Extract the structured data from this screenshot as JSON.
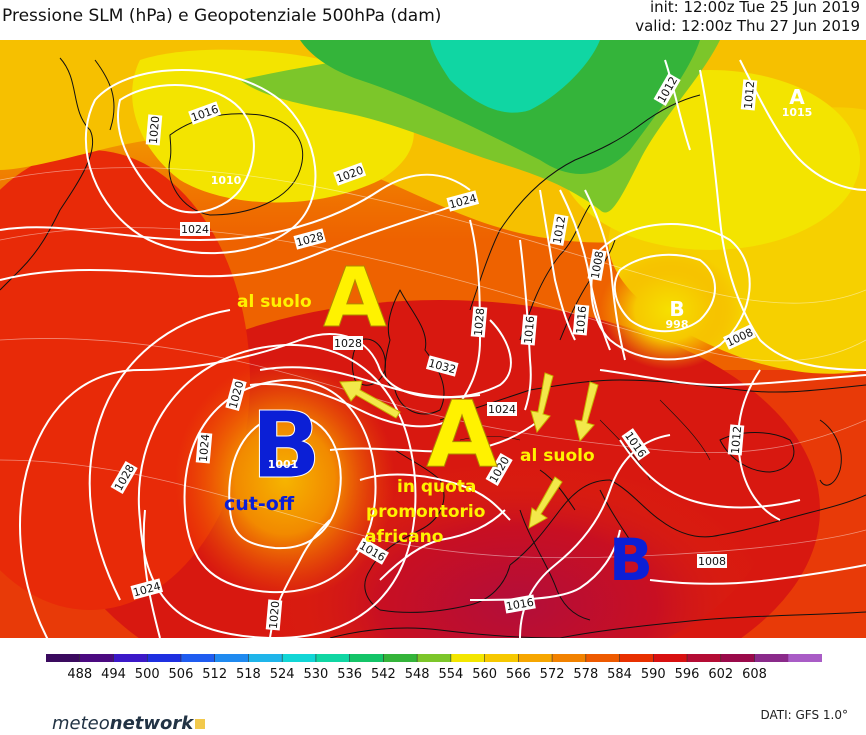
{
  "header": {
    "title": "Pressione SLM (hPa) e Geopotenziale 500hPa (dam)",
    "init": "init: 12:00z Tue 25 Jun 2019",
    "valid": "valid: 12:00z Thu 27 Jun 2019"
  },
  "isobar_labels": [
    "1016",
    "1020",
    "1010",
    "1020",
    "1024",
    "1024",
    "1028",
    "1028",
    "1032",
    "1024",
    "1020",
    "1016",
    "1012",
    "1008",
    "1016",
    "1012",
    "1008",
    "1012",
    "1008",
    "1016",
    "1012",
    "1016",
    "1008",
    "1016",
    "1020",
    "1024",
    "1028",
    "1024",
    "1020",
    "1001",
    "1015",
    "1016",
    "1016"
  ],
  "pressure_centers": {
    "high_ne": {
      "letter": "A",
      "value": "1015"
    },
    "low_east": {
      "letter": "B",
      "value": "998"
    },
    "low_nscand": {
      "value": "1010"
    }
  },
  "annotations": {
    "high_atlantic": "A",
    "high_atlantic_label": "al suolo",
    "high_europe": "A",
    "high_europe_label1": "in quota",
    "high_europe_label2": "promontorio",
    "high_europe_label3": "africano",
    "low_cutoff": "B",
    "low_cutoff_value": "1001",
    "low_cutoff_label": "cut-off",
    "low_mediterranean": "B",
    "surface_label": "al suolo"
  },
  "colorbar": {
    "ticks": [
      "488",
      "494",
      "500",
      "506",
      "512",
      "518",
      "524",
      "530",
      "536",
      "542",
      "548",
      "554",
      "560",
      "566",
      "572",
      "578",
      "584",
      "590",
      "596",
      "602",
      "608"
    ],
    "colors": [
      "#3a0a5e",
      "#4b0a80",
      "#3b18c8",
      "#1e2fe0",
      "#1f5cf0",
      "#1f8af0",
      "#1fb5ea",
      "#12d6d6",
      "#10d6a3",
      "#14c468",
      "#34b43a",
      "#7cc62a",
      "#f3e600",
      "#f6c800",
      "#f6a600",
      "#f28200",
      "#ee5a00",
      "#e83000",
      "#d81010",
      "#b40c34",
      "#9a0a4a",
      "#8a2a8a",
      "#a95cc6"
    ]
  },
  "footer": {
    "brand_a": "meteo",
    "brand_b": "network",
    "dati": "DATI: GFS 1.0°"
  },
  "colors": {
    "annotation_yellow": "#fff200",
    "low_blue": "#0b1fd6",
    "isobar": "#ffffff"
  }
}
